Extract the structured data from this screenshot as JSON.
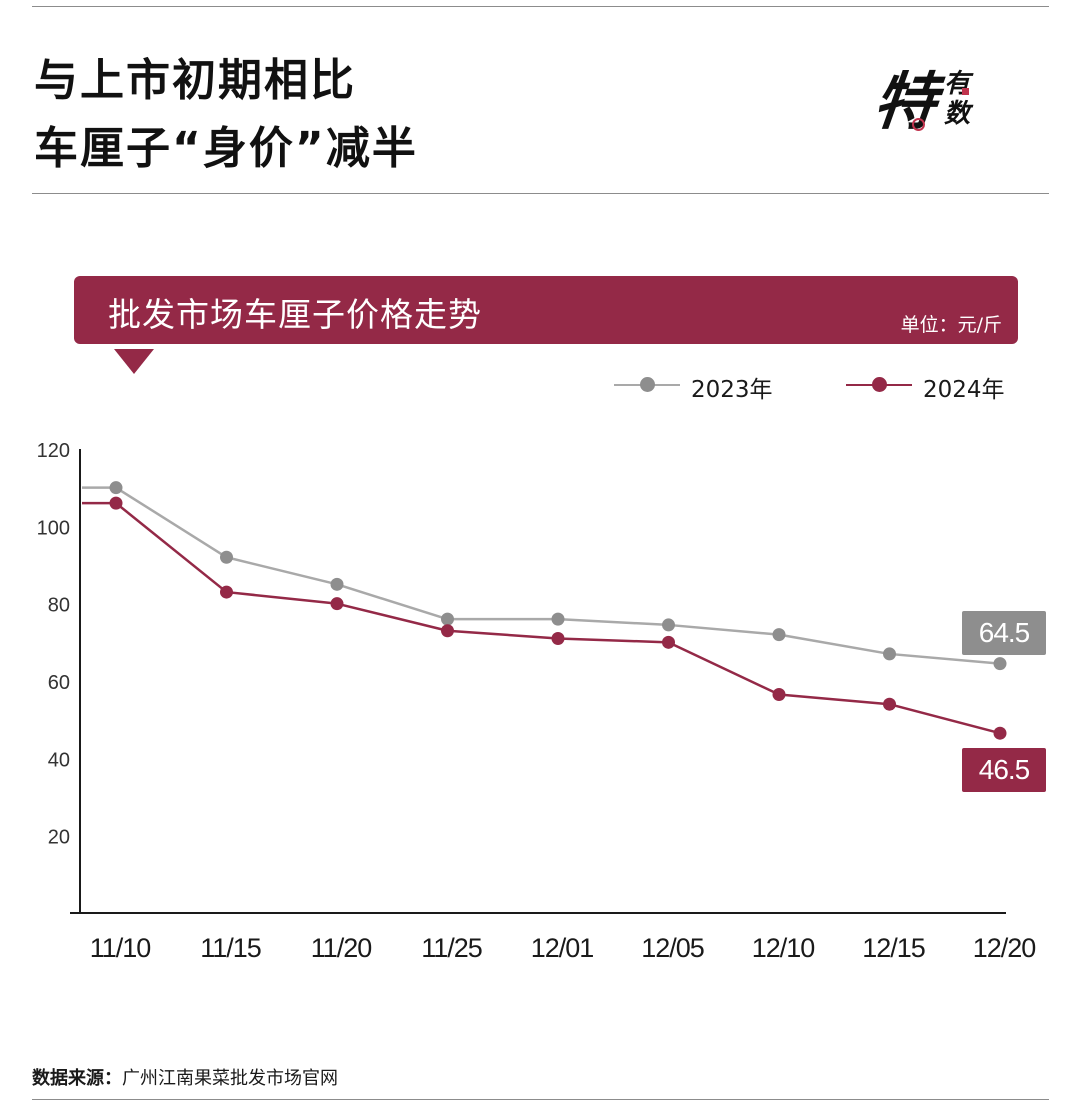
{
  "header": {
    "title_line1": "与上市初期相比",
    "title_line2": "车厘子“身价”减半",
    "logo_big": "特",
    "logo_small_1": "有",
    "logo_small_2": "数"
  },
  "banner": {
    "title": "批发市场车厘子价格走势",
    "unit": "单位：元/斤"
  },
  "chart_data": {
    "type": "line",
    "x": [
      "11/10",
      "11/15",
      "11/20",
      "11/25",
      "12/01",
      "12/05",
      "12/10",
      "12/15",
      "12/20"
    ],
    "ylim": [
      0,
      120
    ],
    "yticks": [
      20,
      40,
      60,
      80,
      100,
      120
    ],
    "series": [
      {
        "name": "2023年",
        "color": "#a9a9a9",
        "marker_color": "#8e8e8e",
        "values": [
          110,
          92,
          85,
          76,
          76,
          74.5,
          72,
          67,
          64.5
        ],
        "end_label": "64.5"
      },
      {
        "name": "2024年",
        "color": "#942947",
        "marker_color": "#942947",
        "values": [
          106,
          83,
          80,
          73,
          71,
          70,
          56.5,
          54,
          46.5
        ],
        "end_label": "46.5"
      }
    ],
    "grid": false,
    "legend_position": "top-right"
  },
  "footer": {
    "source_label": "数据来源：",
    "source_text": "广州江南果菜批发市场官网"
  }
}
